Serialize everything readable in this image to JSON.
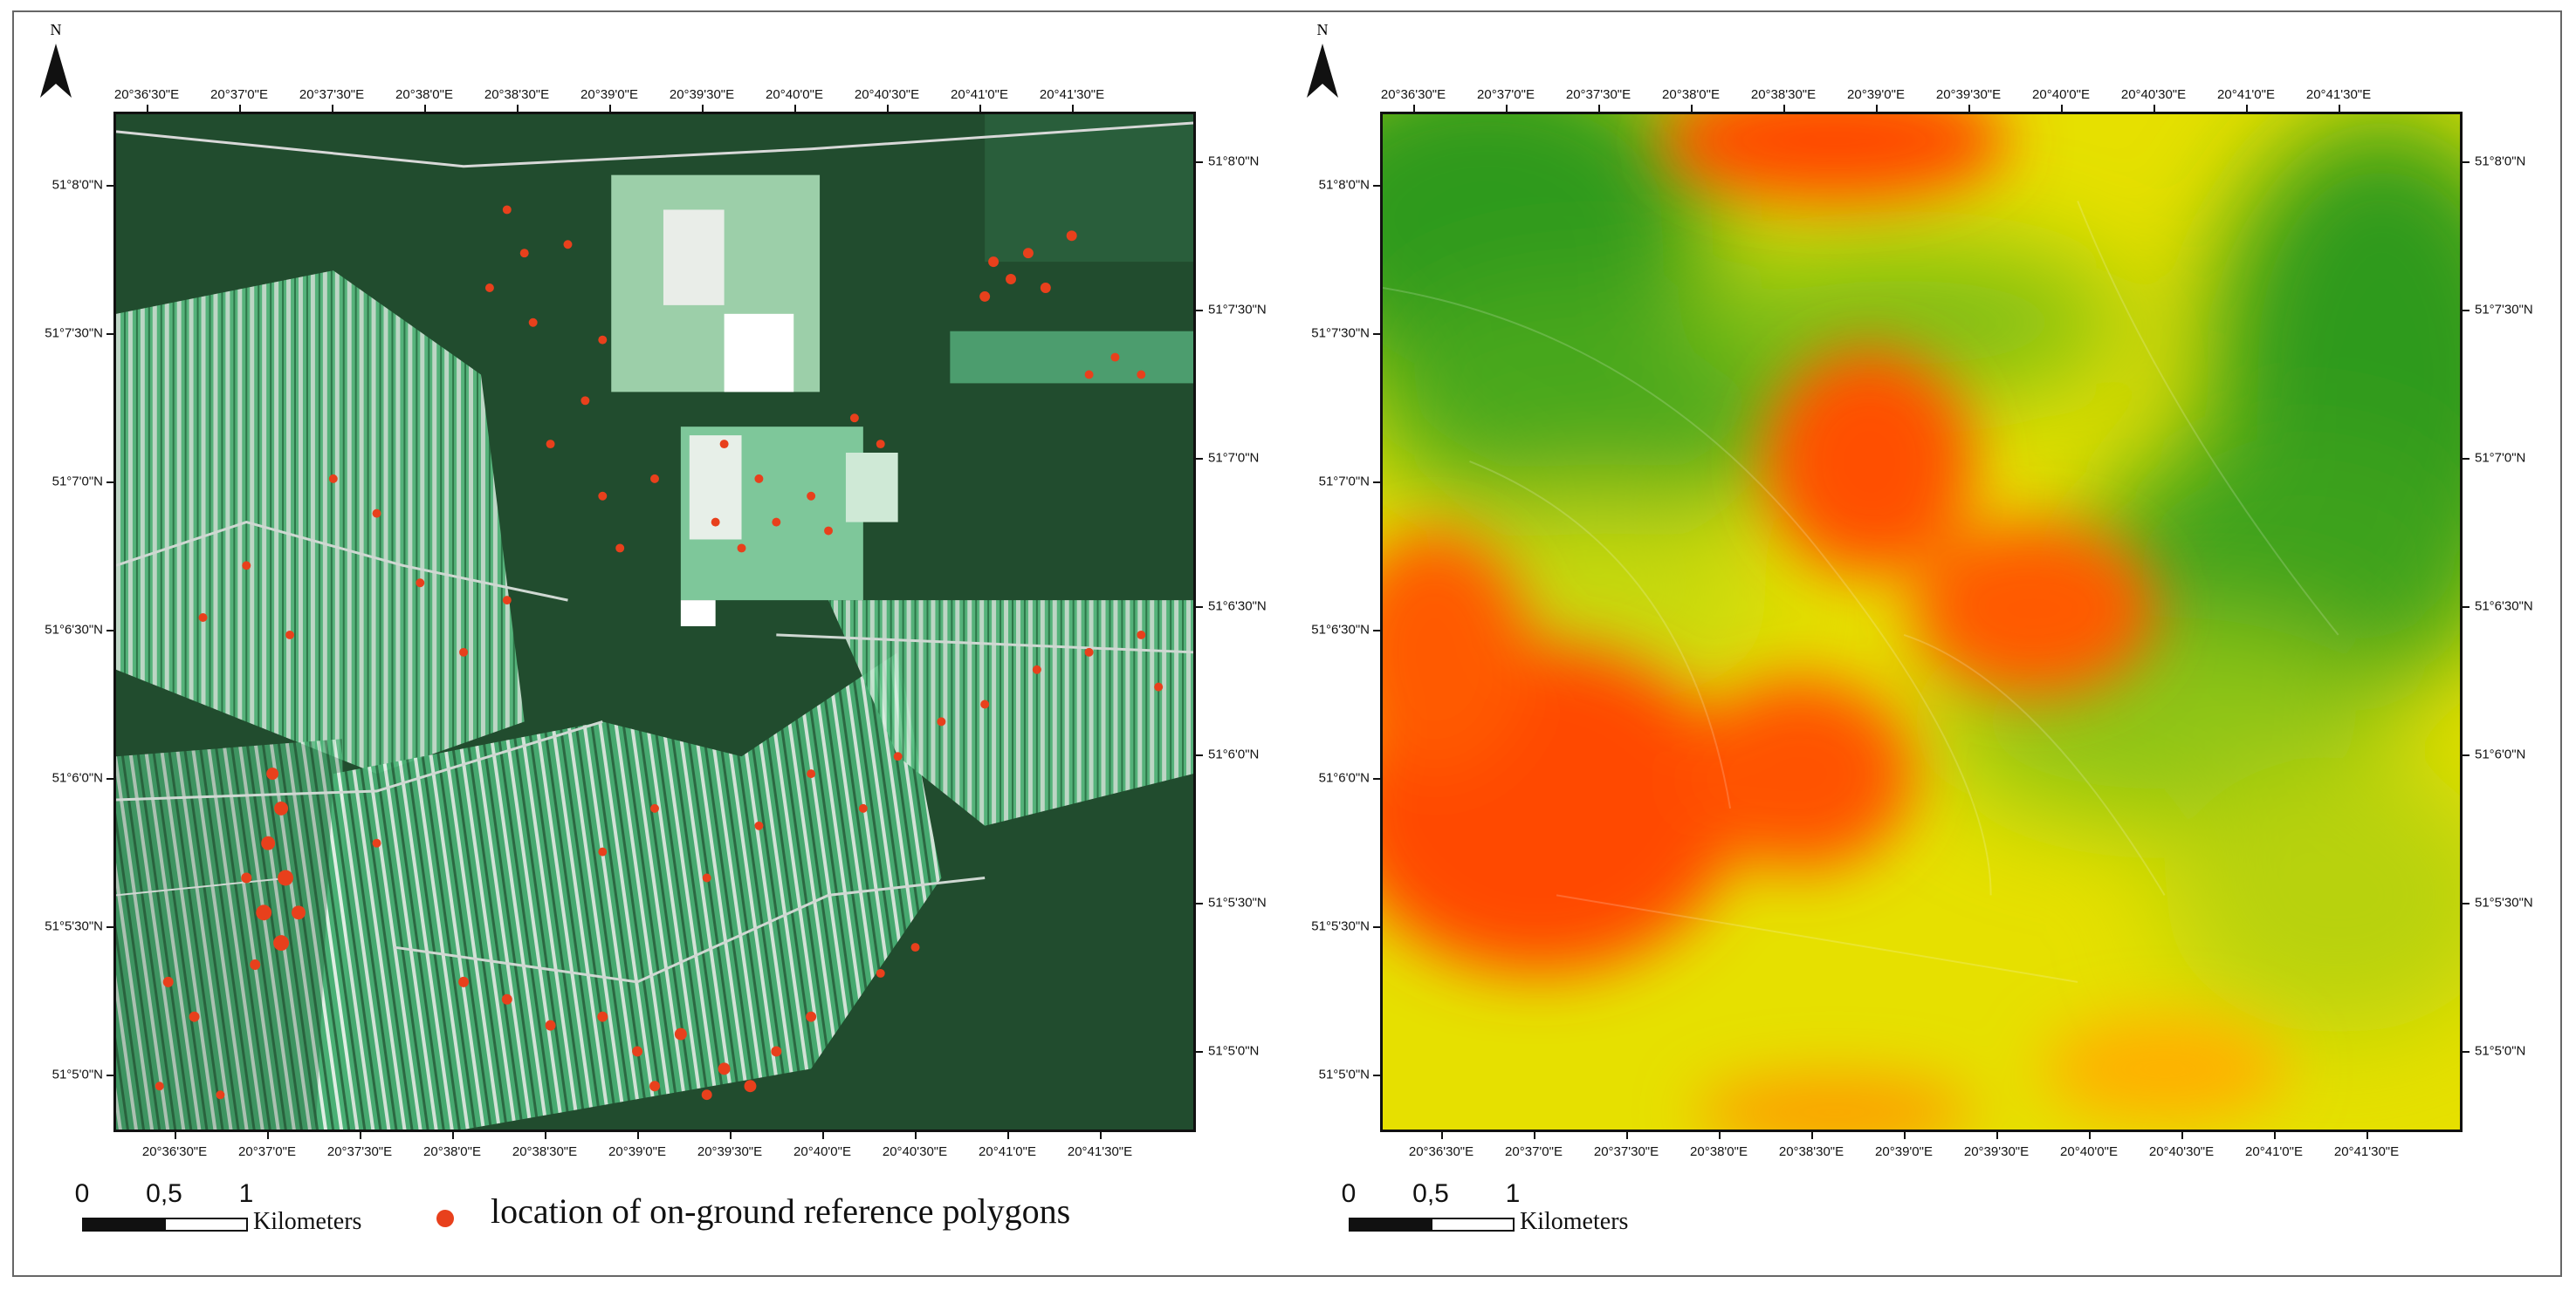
{
  "panels": [
    {
      "id": "satellite",
      "north_label": "N",
      "lon_ticks": [
        "20°36'30\"E",
        "20°37'0\"E",
        "20°37'30\"E",
        "20°38'0\"E",
        "20°38'30\"E",
        "20°39'0\"E",
        "20°39'30\"E",
        "20°40'0\"E",
        "20°40'30\"E",
        "20°41'0\"E",
        "20°41'30\"E"
      ],
      "lat_ticks_left": [
        "51°8'0\"N",
        "51°7'30\"N",
        "51°7'0\"N",
        "51°6'30\"N",
        "51°6'0\"N",
        "51°5'30\"N",
        "51°5'0\"N"
      ],
      "lat_ticks_right": [
        "51°8'0\"N",
        "51°7'30\"N",
        "51°7'0\"N",
        "51°6'30\"N",
        "51°6'0\"N",
        "51°5'30\"N",
        "51°5'0\"N"
      ],
      "scale_numbers": [
        "0",
        "0,5",
        "1"
      ],
      "scale_unit": "Kilometers",
      "legend": {
        "label": "location of on-ground reference polygons",
        "color": "#e8401c"
      }
    },
    {
      "id": "elevation",
      "north_label": "N",
      "lon_ticks": [
        "20°36'30\"E",
        "20°37'0\"E",
        "20°37'30\"E",
        "20°38'0\"E",
        "20°38'30\"E",
        "20°39'0\"E",
        "20°39'30\"E",
        "20°40'0\"E",
        "20°40'30\"E",
        "20°41'0\"E",
        "20°41'30\"E"
      ],
      "lat_ticks_left": [
        "51°8'0\"N",
        "51°7'30\"N",
        "51°7'0\"N",
        "51°6'30\"N",
        "51°6'0\"N",
        "51°5'30\"N",
        "51°5'0\"N"
      ],
      "lat_ticks_right": [
        "51°8'0\"N",
        "51°7'30\"N",
        "51°7'0\"N",
        "51°6'30\"N",
        "51°6'0\"N",
        "51°5'30\"N",
        "51°5'0\"N"
      ],
      "scale_numbers": [
        "0",
        "0,5",
        "1"
      ],
      "scale_unit": "Kilometers"
    }
  ],
  "colors": {
    "forest": "#1f4a2a",
    "field": "#4fbf7a",
    "reference_point": "#e8401c",
    "elev_low": "#1f8a1f",
    "elev_mid": "#f2ea00",
    "elev_high": "#ff4a00"
  }
}
